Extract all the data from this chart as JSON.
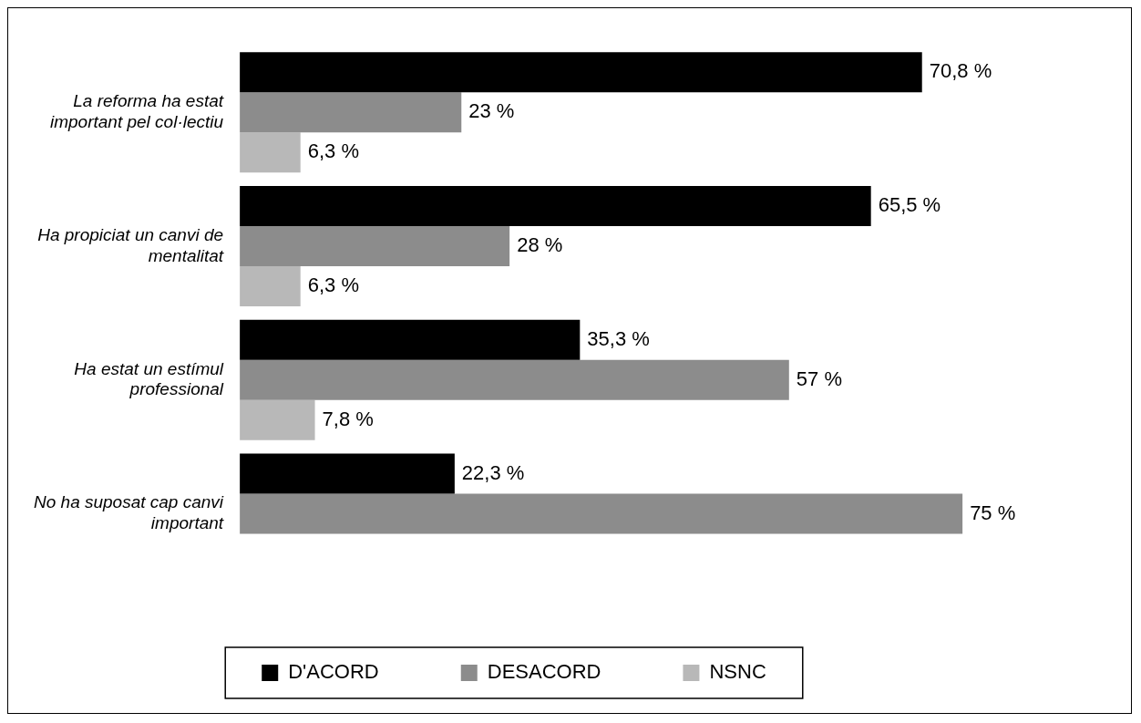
{
  "chart_data": {
    "type": "bar",
    "orientation": "horizontal",
    "categories": [
      "La reforma ha estat important pel col·lectiu",
      "Ha propiciat un canvi de mentalitat",
      "Ha estat un estímul professional",
      "No ha suposat cap canvi important"
    ],
    "series": [
      {
        "name": "D'ACORD",
        "color": "#000000",
        "values": [
          70.8,
          65.5,
          35.3,
          22.3
        ],
        "value_labels": [
          "70,8 %",
          "65,5 %",
          "35,3 %",
          "22,3 %"
        ]
      },
      {
        "name": "DESACORD",
        "color": "#8c8c8c",
        "values": [
          23,
          28,
          57,
          75
        ],
        "value_labels": [
          "23 %",
          "28 %",
          "57 %",
          "75 %"
        ]
      },
      {
        "name": "NSNC",
        "color": "#b8b8b8",
        "values": [
          6.3,
          6.3,
          7.8,
          null
        ],
        "value_labels": [
          "6,3 %",
          "6,3 %",
          "7,8 %",
          null
        ]
      }
    ],
    "legend": "bottom"
  }
}
